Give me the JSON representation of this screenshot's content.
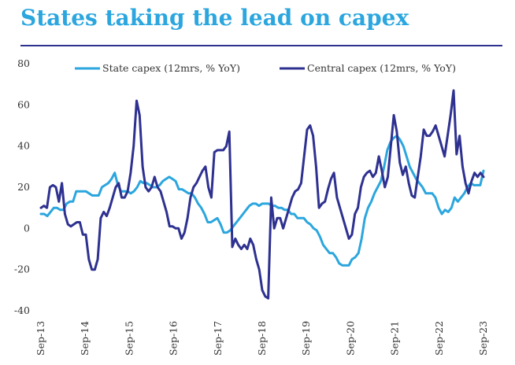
{
  "chart_data": {
    "type": "line",
    "title": "States taking the lead on capex",
    "xlabel": "",
    "ylabel": "",
    "ylim": [
      -40,
      80
    ],
    "yticks": [
      80,
      60,
      40,
      20,
      0,
      -20,
      -40
    ],
    "x_tick_labels": [
      "Sep-13",
      "Sep-14",
      "Sep-15",
      "Sep-16",
      "Sep-17",
      "Sep-18",
      "Sep-19",
      "Sep-20",
      "Sep-21",
      "Sep-22",
      "Sep-23"
    ],
    "x_start": "Sep-13",
    "x_end": "Sep-23",
    "grid": false,
    "legend_position": "top",
    "colors": {
      "state": "#2BA6DE",
      "central": "#2E3190",
      "title": "#2BA6DE",
      "rule": "#2E3190"
    },
    "series": [
      {
        "name": "State capex (12mrs, % YoY)",
        "key": "state",
        "values": [
          7,
          7,
          6,
          8,
          10,
          10,
          9,
          9,
          12,
          13,
          13,
          18,
          18,
          18,
          18,
          17,
          16,
          16,
          16,
          20,
          21,
          22,
          24,
          27,
          21,
          18,
          18,
          18,
          17,
          18,
          20,
          23,
          22,
          22,
          21,
          20,
          20,
          21,
          23,
          24,
          25,
          24,
          23,
          19,
          19,
          18,
          17,
          17,
          15,
          12,
          10,
          7,
          3,
          3,
          4,
          5,
          2,
          -2,
          -2,
          -1,
          1,
          3,
          5,
          7,
          9,
          11,
          12,
          12,
          11,
          12,
          12,
          12,
          11,
          11,
          10,
          10,
          9,
          9,
          7,
          7,
          5,
          5,
          5,
          3,
          2,
          0,
          -1,
          -4,
          -8,
          -10,
          -12,
          -12,
          -14,
          -17,
          -18,
          -18,
          -18,
          -15,
          -14,
          -12,
          -5,
          5,
          10,
          13,
          17,
          20,
          23,
          30,
          38,
          42,
          44,
          45,
          43,
          40,
          35,
          30,
          27,
          24,
          22,
          20,
          17,
          17,
          17,
          15,
          10,
          7,
          9,
          8,
          10,
          15,
          13,
          15,
          17,
          20,
          22,
          21,
          21,
          21,
          28
        ]
      },
      {
        "name": "Central capex (12mrs, % YoY)",
        "key": "central",
        "values": [
          10,
          11,
          10,
          20,
          21,
          20,
          13,
          22,
          7,
          2,
          1,
          2,
          3,
          3,
          -3,
          -3,
          -15,
          -20,
          -20,
          -15,
          5,
          8,
          6,
          10,
          15,
          20,
          22,
          15,
          15,
          18,
          27,
          40,
          62,
          55,
          30,
          20,
          18,
          20,
          25,
          20,
          18,
          13,
          8,
          1,
          1,
          0,
          0,
          -5,
          -2,
          5,
          15,
          20,
          22,
          25,
          28,
          30,
          20,
          15,
          37,
          38,
          38,
          38,
          40,
          47,
          -9,
          -5,
          -8,
          -10,
          -8,
          -10,
          -5,
          -8,
          -15,
          -20,
          -30,
          -33,
          -34,
          15,
          0,
          5,
          5,
          0,
          5,
          10,
          15,
          18,
          19,
          22,
          35,
          48,
          50,
          45,
          30,
          10,
          12,
          13,
          19,
          24,
          27,
          15,
          10,
          5,
          0,
          -5,
          -3,
          7,
          10,
          20,
          25,
          27,
          28,
          25,
          27,
          35,
          28,
          20,
          25,
          40,
          55,
          47,
          32,
          26,
          30,
          22,
          16,
          15,
          25,
          35,
          48,
          45,
          45,
          47,
          50,
          45,
          40,
          35,
          45,
          55,
          67,
          36,
          45,
          30,
          22,
          17,
          23,
          27,
          25,
          27,
          25
        ]
      }
    ]
  }
}
